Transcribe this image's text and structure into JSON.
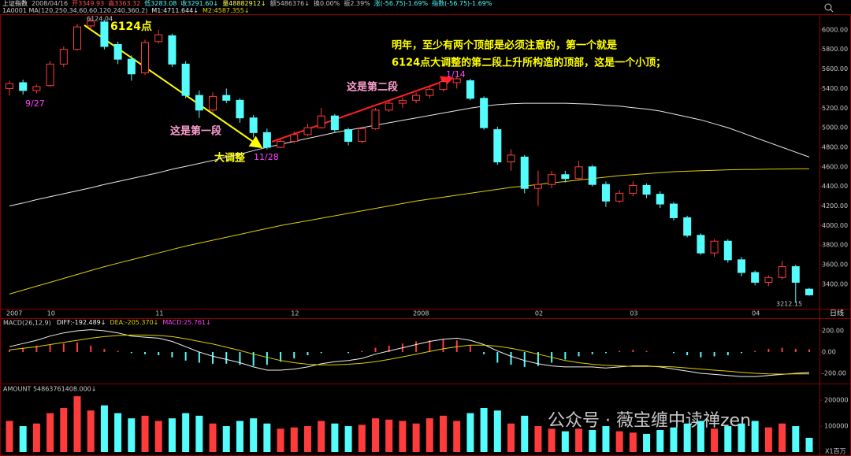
{
  "chart_data": [
    {
      "type": "candlestick",
      "header": [
        {
          "text": "上证指数",
          "color": "#f0f0f0"
        },
        {
          "text": "2008/04/16",
          "color": "#c0c0c0"
        },
        {
          "text": "开3349.93",
          "color": "#ff5050"
        },
        {
          "text": "高3363.32",
          "color": "#ff5050"
        },
        {
          "text": "低3283.08",
          "color": "#54fcfc"
        },
        {
          "text": "收3291.60↓",
          "color": "#54fcfc"
        },
        {
          "text": "量48882912↓",
          "color": "#ffff50"
        },
        {
          "text": "额5486376↓",
          "color": "#c0c0c0"
        },
        {
          "text": "换0.00%",
          "color": "#c0c0c0"
        },
        {
          "text": "振2.39%",
          "color": "#c0c0c0"
        },
        {
          "text": "涨(-56.75)-1.69%",
          "color": "#54fcfc"
        },
        {
          "text": "指数(-56.75)-1.69%",
          "color": "#54fcfc"
        }
      ],
      "subtitle": "1A0001 MA(120,250,34,60,60,120,240,360,2)",
      "period": "日线",
      "categories": [
        "2007",
        null,
        null,
        "10",
        null,
        null,
        null,
        null,
        null,
        null,
        null,
        "11",
        null,
        null,
        null,
        null,
        null,
        null,
        null,
        null,
        null,
        "12",
        null,
        null,
        null,
        null,
        null,
        null,
        null,
        null,
        "2008",
        null,
        null,
        null,
        null,
        null,
        null,
        null,
        null,
        "02",
        null,
        null,
        null,
        null,
        null,
        null,
        "03",
        null,
        null,
        null,
        null,
        null,
        null,
        null,
        null,
        "04",
        null,
        null,
        null,
        null
      ],
      "open": [
        5400,
        5460,
        5380,
        5430,
        5650,
        5800,
        6040,
        6080,
        5850,
        5700,
        5560,
        5880,
        5940,
        5650,
        5330,
        5180,
        5330,
        5280,
        5100,
        4950,
        4800,
        4860,
        4930,
        5000,
        5120,
        4980,
        4860,
        4990,
        5180,
        5250,
        5280,
        5330,
        5390,
        5460,
        5480,
        5300,
        4980,
        4650,
        4700,
        4380,
        4420,
        4520,
        4480,
        4600,
        4420,
        4250,
        4330,
        4410,
        4320,
        4220,
        4080,
        3900,
        3720,
        3840,
        3650,
        3520,
        3420,
        3470,
        3580,
        3349.93
      ],
      "high": [
        5480,
        5490,
        5440,
        5680,
        5830,
        6060,
        6124,
        6100,
        5880,
        5740,
        5900,
        6000,
        5960,
        5680,
        5380,
        5360,
        5400,
        5300,
        5130,
        4990,
        4890,
        4960,
        5040,
        5200,
        5140,
        5000,
        5010,
        5200,
        5280,
        5310,
        5360,
        5420,
        5500,
        5522,
        5500,
        5320,
        5010,
        4780,
        4720,
        4560,
        4560,
        4560,
        4660,
        4620,
        4450,
        4360,
        4450,
        4430,
        4350,
        4240,
        4100,
        3920,
        3860,
        3860,
        3680,
        3540,
        3490,
        3640,
        3600,
        3363.32
      ],
      "low": [
        5330,
        5340,
        5350,
        5420,
        5620,
        5790,
        6000,
        5800,
        5650,
        5480,
        5540,
        5860,
        5620,
        5300,
        5100,
        5150,
        5250,
        5050,
        4900,
        4778,
        4790,
        4840,
        4910,
        4990,
        4950,
        4820,
        4840,
        4980,
        5160,
        5200,
        5250,
        5300,
        5370,
        5400,
        5280,
        4980,
        4620,
        4560,
        4330,
        4200,
        4380,
        4440,
        4460,
        4400,
        4190,
        4230,
        4300,
        4280,
        4180,
        4050,
        3880,
        3700,
        3680,
        3620,
        3480,
        3390,
        3380,
        3450,
        3212.15,
        3283.08
      ],
      "close": [
        5450,
        5380,
        5420,
        5650,
        5800,
        6030,
        6090,
        5830,
        5700,
        5550,
        5870,
        5950,
        5650,
        5330,
        5180,
        5320,
        5280,
        5100,
        4950,
        4800,
        4860,
        4930,
        5000,
        5120,
        4980,
        4860,
        4990,
        5180,
        5250,
        5280,
        5330,
        5390,
        5470,
        5500,
        5300,
        5000,
        4650,
        4720,
        4380,
        4420,
        4520,
        4480,
        4600,
        4420,
        4250,
        4330,
        4410,
        4320,
        4220,
        4080,
        3900,
        3720,
        3840,
        3650,
        3520,
        3420,
        3470,
        3580,
        3420,
        3291.6
      ],
      "up_color": "#ff3c3c",
      "down_color": "#54fcfc",
      "series": [
        {
          "name": "M1:4711.644↓",
          "color": "#e8e8e8",
          "values": [
            4200,
            4230,
            4265,
            4295,
            4325,
            4355,
            4385,
            4420,
            4450,
            4480,
            4510,
            4540,
            4575,
            4605,
            4635,
            4665,
            4700,
            4730,
            4765,
            4800,
            4830,
            4860,
            4890,
            4920,
            4950,
            4975,
            5000,
            5025,
            5050,
            5075,
            5100,
            5125,
            5150,
            5175,
            5200,
            5220,
            5235,
            5245,
            5250,
            5250,
            5250,
            5250,
            5245,
            5240,
            5230,
            5220,
            5205,
            5190,
            5170,
            5140,
            5110,
            5080,
            5040,
            5000,
            4950,
            4900,
            4850,
            4800,
            4750,
            4700
          ]
        },
        {
          "name": "M2:4587.355↓",
          "color": "#e0d000",
          "values": [
            3300,
            3340,
            3380,
            3420,
            3460,
            3500,
            3540,
            3580,
            3615,
            3650,
            3685,
            3720,
            3755,
            3790,
            3820,
            3850,
            3880,
            3910,
            3940,
            3970,
            4000,
            4025,
            4050,
            4075,
            4100,
            4125,
            4150,
            4175,
            4200,
            4225,
            4250,
            4270,
            4290,
            4310,
            4330,
            4350,
            4370,
            4390,
            4405,
            4420,
            4435,
            4450,
            4465,
            4480,
            4495,
            4510,
            4520,
            4530,
            4540,
            4550,
            4555,
            4560,
            4565,
            4570,
            4572,
            4574,
            4576,
            4578,
            4579,
            4580
          ]
        }
      ],
      "ylim": [
        3150,
        6160
      ],
      "yticks": [
        {
          "value": 3400,
          "label": "3400.00"
        },
        {
          "value": 3600,
          "label": "3600.00"
        },
        {
          "value": 3800,
          "label": "3800.00"
        },
        {
          "value": 4000,
          "label": "4000.00"
        },
        {
          "value": 4200,
          "label": "4200.00"
        },
        {
          "value": 4400,
          "label": "4400.00"
        },
        {
          "value": 4600,
          "label": "4600.00"
        },
        {
          "value": 4800,
          "label": "4800.00"
        },
        {
          "value": 5000,
          "label": "5000.00"
        },
        {
          "value": 5200,
          "label": "5200.00"
        },
        {
          "value": 5400,
          "label": "5400.00"
        },
        {
          "value": 5600,
          "label": "5600.00"
        },
        {
          "value": 5800,
          "label": "5800.00"
        },
        {
          "value": 6000,
          "label": "6000.00"
        }
      ],
      "annotations": [
        "6124.04",
        "6124点",
        "9/27",
        "11/28",
        "1/14",
        "这是第一段",
        "大调整",
        "这是第二段",
        "明年，至少有两个顶部是必须注意的，第一个就是",
        "6124点大调整的第二段上升所构造的顶部，这是一个小顶；",
        "3212.15"
      ]
    },
    {
      "type": "macd",
      "title": "MACD(26,12,9)",
      "values": [
        20,
        40,
        60,
        70,
        80,
        90,
        60,
        30,
        10,
        -10,
        -20,
        -30,
        -50,
        -80,
        -100,
        -110,
        -110,
        -120,
        -130,
        -120,
        -90,
        -60,
        -30,
        -10,
        0,
        -10,
        10,
        40,
        60,
        80,
        100,
        110,
        120,
        110,
        60,
        -20,
        -100,
        -120,
        -140,
        -130,
        -100,
        -70,
        -40,
        -20,
        -10,
        10,
        20,
        10,
        0,
        -10,
        -30,
        -50,
        -40,
        -30,
        -10,
        10,
        30,
        40,
        30,
        25.761
      ],
      "legend_name": "MACD:25.761↓",
      "pos_color": "#ff3c3c",
      "neg_color": "#54fcfc",
      "series": [
        {
          "name": "DIFF:-192.489↓",
          "color": "#f0f0f0",
          "values": [
            50,
            80,
            110,
            150,
            180,
            200,
            210,
            200,
            180,
            150,
            140,
            130,
            100,
            50,
            0,
            -40,
            -70,
            -100,
            -140,
            -170,
            -170,
            -160,
            -140,
            -110,
            -90,
            -80,
            -60,
            -20,
            10,
            40,
            70,
            100,
            120,
            130,
            110,
            70,
            10,
            -40,
            -80,
            -110,
            -130,
            -140,
            -140,
            -140,
            -150,
            -140,
            -130,
            -130,
            -140,
            -160,
            -180,
            -200,
            -210,
            -220,
            -230,
            -230,
            -220,
            -210,
            -200,
            -192.489
          ]
        },
        {
          "name": "DEA:-205.370↓",
          "color": "#e0d000",
          "values": [
            20,
            35,
            50,
            70,
            90,
            110,
            130,
            145,
            155,
            160,
            160,
            155,
            145,
            125,
            100,
            75,
            45,
            15,
            -20,
            -50,
            -80,
            -100,
            -115,
            -120,
            -120,
            -115,
            -105,
            -90,
            -70,
            -45,
            -20,
            5,
            30,
            50,
            65,
            65,
            55,
            35,
            10,
            -20,
            -50,
            -80,
            -100,
            -115,
            -125,
            -130,
            -135,
            -135,
            -135,
            -140,
            -150,
            -160,
            -170,
            -180,
            -190,
            -200,
            -205,
            -207,
            -206,
            -205.37
          ]
        }
      ],
      "ylim": [
        -296,
        318
      ],
      "yticks": [
        {
          "value": 200,
          "label": "200.00"
        },
        {
          "value": 0,
          "label": "0.00"
        },
        {
          "value": -200,
          "label": "-200.00"
        }
      ]
    },
    {
      "type": "bar",
      "title": "AMOUNT 54863761408.000↓",
      "unit": "X1百万",
      "values": [
        120000,
        100000,
        110000,
        150000,
        170000,
        215000,
        160000,
        180000,
        150000,
        130000,
        140000,
        120000,
        130000,
        150000,
        140000,
        110000,
        100000,
        120000,
        130000,
        110000,
        90000,
        95000,
        100000,
        120000,
        110000,
        100000,
        105000,
        130000,
        125000,
        120000,
        110000,
        130000,
        140000,
        120000,
        150000,
        170000,
        160000,
        110000,
        140000,
        100000,
        90000,
        80000,
        90000,
        85000,
        100000,
        80000,
        75000,
        70000,
        85000,
        95000,
        110000,
        120000,
        90000,
        100000,
        110000,
        120000,
        95000,
        110000,
        100000,
        54863.761408
      ],
      "ylim": [
        0,
        264000
      ],
      "yticks": [
        100000,
        200000
      ]
    }
  ],
  "watermark": "公众号 · 薇宝缠中读禅zen"
}
